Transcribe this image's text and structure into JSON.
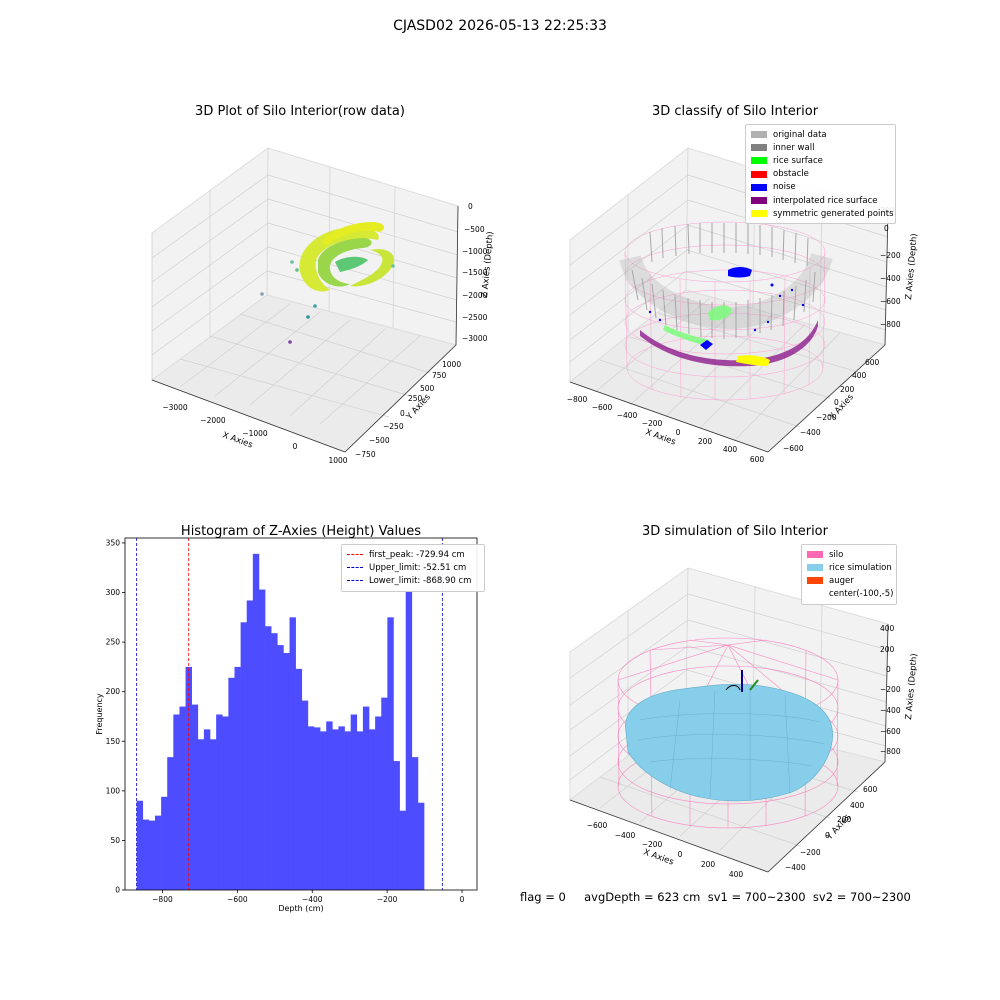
{
  "suptitle": "CJASD02 2026-05-13 22:25:33",
  "footer": "flag = 0     avgDepth = 623 cm  sv1 = 700~2300  sv2 = 700~2300",
  "colors": {
    "hist_bar": "#4d4dff",
    "first_peak_line": "#ff0000",
    "limit_line": "#0000cc",
    "pane": "#f2f2f2",
    "silo_wire": "#ff69b4",
    "rice_sim": "#87ceeb"
  },
  "chart_data": [
    {
      "type": "scatter",
      "projection": "3d",
      "title": "3D Plot of Silo Interior(row data)",
      "xlabel": "X Axies",
      "ylabel": "Y Axies",
      "zlabel": "Z Axies (Depth)",
      "x_ticks": [
        "−3000",
        "−2000",
        "−1000",
        "0",
        "1000"
      ],
      "y_ticks": [
        "−750",
        "−500",
        "−250",
        "0",
        "250",
        "500",
        "750",
        "1000"
      ],
      "z_ticks": [
        "0",
        "−500",
        "−1000",
        "−1500",
        "−2000",
        "−2500",
        "−3000"
      ],
      "grid": true
    },
    {
      "type": "scatter",
      "projection": "3d",
      "title": "3D classify of Silo Interior",
      "xlabel": "X Axies",
      "ylabel": "Y Axies",
      "zlabel": "Z Axies (Depth)",
      "x_ticks": [
        "−800",
        "−600",
        "−400",
        "−200",
        "0",
        "200",
        "400",
        "600"
      ],
      "y_ticks": [
        "−600",
        "−400",
        "−200",
        "0",
        "200",
        "400",
        "600"
      ],
      "z_ticks": [
        "200",
        "0",
        "−200",
        "−400",
        "−600",
        "−800"
      ],
      "legend_position": "top-right",
      "legend": [
        {
          "label": "original data",
          "color": "#b0b0b0"
        },
        {
          "label": "inner wall",
          "color": "#808080"
        },
        {
          "label": "rice surface",
          "color": "#00ff00"
        },
        {
          "label": "obstacle",
          "color": "#ff0000"
        },
        {
          "label": "noise",
          "color": "#0000ff"
        },
        {
          "label": "interpolated rice surface",
          "color": "#800080"
        },
        {
          "label": "symmetric generated points",
          "color": "#ffff00"
        }
      ],
      "grid": true
    },
    {
      "type": "bar",
      "title": "Histogram of Z-Axies (Height) Values",
      "xlabel": "Depth (cm)",
      "ylabel": "Frequency",
      "xlim": [
        -900,
        40
      ],
      "ylim": [
        0,
        355
      ],
      "x_ticks": [
        -800,
        -600,
        -400,
        -200,
        0
      ],
      "x_tick_labels": [
        "−800",
        "−600",
        "−400",
        "−200",
        "0"
      ],
      "y_ticks": [
        0,
        50,
        100,
        150,
        200,
        250,
        300,
        350
      ],
      "bin_start": -868.9,
      "bin_width": 16.33,
      "values": [
        90,
        71,
        70,
        75,
        94,
        134,
        177,
        185,
        225,
        187,
        152,
        162,
        152,
        177,
        175,
        214,
        225,
        270,
        292,
        339,
        303,
        266,
        259,
        247,
        239,
        275,
        223,
        191,
        165,
        164,
        160,
        170,
        162,
        165,
        160,
        177,
        160,
        185,
        162,
        175,
        194,
        275,
        130,
        80,
        302,
        134,
        88
      ],
      "vlines": [
        {
          "label": "first_peak: -729.94 cm",
          "value": -729.94,
          "color": "#ff0000"
        },
        {
          "label": "Upper_limit: -52.51 cm",
          "value": -52.51,
          "color": "#0000cc"
        },
        {
          "label": "Lower_limit: -868.90 cm",
          "value": -868.9,
          "color": "#0000cc"
        }
      ],
      "legend_position": "top-right",
      "grid": false
    },
    {
      "type": "surface",
      "projection": "3d",
      "title": "3D simulation of Silo Interior",
      "xlabel": "X Axies",
      "ylabel": "Y Axies",
      "zlabel": "Z Axies (Depth)",
      "x_ticks": [
        "−600",
        "−400",
        "−200",
        "0",
        "200",
        "400"
      ],
      "y_ticks": [
        "−400",
        "−200",
        "0",
        "200",
        "400",
        "600"
      ],
      "z_ticks": [
        "400",
        "200",
        "0",
        "−200",
        "−400",
        "−600",
        "−800"
      ],
      "legend_position": "top-right",
      "legend": [
        {
          "label": "silo",
          "color": "#ff69b4"
        },
        {
          "label": "rice simulation",
          "color": "#87ceeb"
        },
        {
          "label": "auger",
          "color": "#ff4500"
        },
        {
          "label": "center(-100,-5)",
          "color": "#ffffff"
        }
      ],
      "grid": true
    }
  ]
}
